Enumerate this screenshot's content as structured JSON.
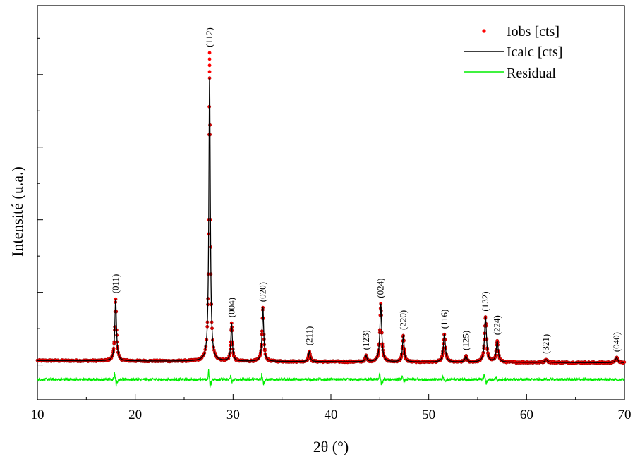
{
  "chart_data": {
    "type": "line",
    "xlabel": "2θ (°)",
    "ylabel": "Intensité (u.a.)",
    "xlim": [
      10,
      70
    ],
    "ylim": [
      -0.48,
      4.95
    ],
    "x_ticks": [
      "10",
      "20",
      "30",
      "40",
      "50",
      "60",
      "70"
    ],
    "grid": false,
    "legend_position": "top-right",
    "legend": [
      {
        "name": "Iobs [cts]",
        "marker": "dot",
        "color": "#ff0000"
      },
      {
        "name": "Icalc [cts]",
        "marker": "line",
        "color": "#000000"
      },
      {
        "name": "Residual",
        "marker": "line",
        "color": "#00ee00"
      }
    ],
    "background": {
      "start": 0.06,
      "end": 0.03
    },
    "residual_offset": -0.2,
    "peaks": [
      {
        "label": "(011)",
        "x": 18.0,
        "height": 0.85,
        "width": 0.1
      },
      {
        "label": "(112)",
        "x": 27.6,
        "height": 3.9,
        "width": 0.09,
        "obs_max": 4.3
      },
      {
        "label": "(004)",
        "x": 29.85,
        "height": 0.52,
        "width": 0.09
      },
      {
        "label": "(020)",
        "x": 33.05,
        "height": 0.74,
        "width": 0.1
      },
      {
        "label": "(211)",
        "x": 37.8,
        "height": 0.14,
        "width": 0.1
      },
      {
        "label": "(123)",
        "x": 43.6,
        "height": 0.08,
        "width": 0.1
      },
      {
        "label": "(024)",
        "x": 45.1,
        "height": 0.8,
        "width": 0.11
      },
      {
        "label": "(220)",
        "x": 47.4,
        "height": 0.36,
        "width": 0.1
      },
      {
        "label": "(116)",
        "x": 51.6,
        "height": 0.38,
        "width": 0.12
      },
      {
        "label": "(125)",
        "x": 53.8,
        "height": 0.08,
        "width": 0.12
      },
      {
        "label": "(132)",
        "x": 55.8,
        "height": 0.62,
        "width": 0.12
      },
      {
        "label": "(224)",
        "x": 57.0,
        "height": 0.29,
        "width": 0.12
      },
      {
        "label": "(321)",
        "x": 62.0,
        "height": 0.04,
        "width": 0.15
      },
      {
        "label": "(040)",
        "x": 69.2,
        "height": 0.07,
        "width": 0.14
      }
    ],
    "series_colors": {
      "observed": "#ff0000",
      "observed_edge": "#7a0000",
      "calculated": "#000000",
      "residual": "#00ee00"
    }
  }
}
